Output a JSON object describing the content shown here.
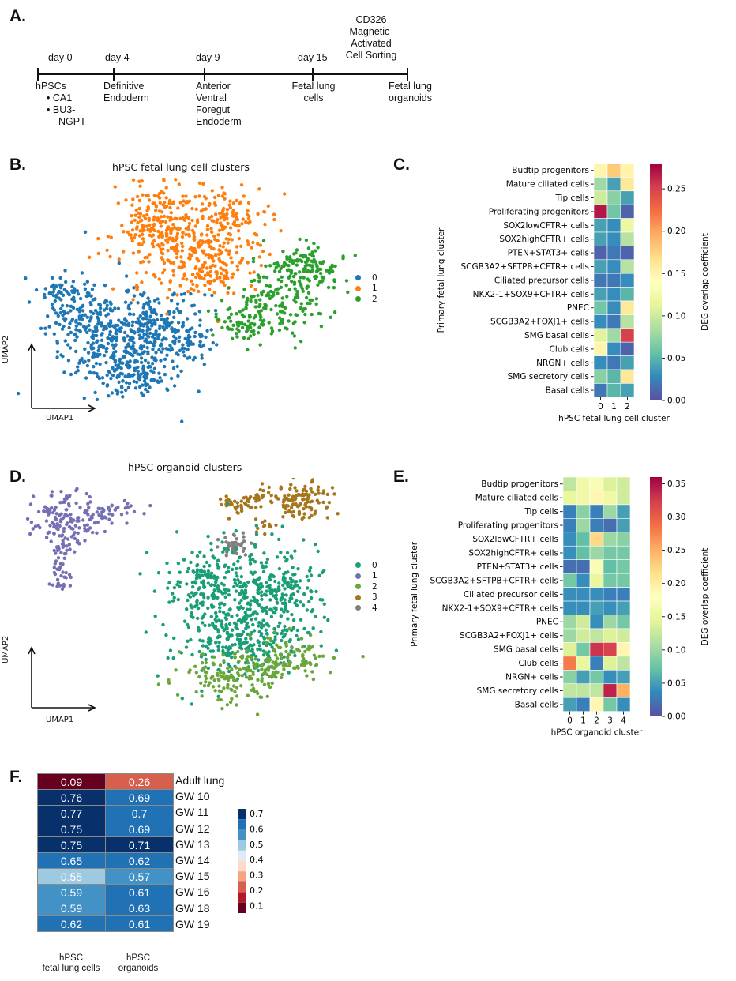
{
  "panels": {
    "a": "A.",
    "b": "B.",
    "c": "C.",
    "d": "D.",
    "e": "E.",
    "f": "F."
  },
  "timeline": {
    "days": [
      "day 0",
      "day 4",
      "day 9",
      "day 15"
    ],
    "macs": [
      "CD326",
      "Magnetic-",
      "Activated",
      "Cell Sorting"
    ],
    "stages": {
      "hpsc": "hPSCs",
      "lines": [
        "CA1",
        "BU3-",
        "NGPT"
      ],
      "de": [
        "Definitive",
        "Endoderm"
      ],
      "avfe": [
        "Anterior",
        "Ventral",
        "Foregut",
        "Endoderm"
      ],
      "flc": [
        "Fetal lung",
        "cells"
      ],
      "flo": [
        "Fetal lung",
        "organoids"
      ]
    }
  },
  "umap_b": {
    "title": "hPSC fetal lung cell clusters",
    "xlabel": "UMAP1",
    "ylabel": "UMAP2",
    "legend": [
      "0",
      "1",
      "2"
    ],
    "colors": [
      "#1f77b4",
      "#ff7f0e",
      "#2ca02c"
    ]
  },
  "umap_d": {
    "title": "hPSC organoid clusters",
    "xlabel": "UMAP1",
    "ylabel": "UMAP2",
    "legend": [
      "0",
      "1",
      "2",
      "3",
      "4"
    ],
    "colors": [
      "#1a9e77",
      "#7570b3",
      "#6aa63a",
      "#a6761d",
      "#7f7f7f"
    ]
  },
  "chart_data": [
    {
      "type": "heatmap",
      "title": "",
      "xlabel": "hPSC fetal lung cell cluster",
      "ylabel": "Primary fetal lung cluster",
      "x": [
        "0",
        "1",
        "2"
      ],
      "y": [
        "Budtip progenitors",
        "Mature ciliated cells",
        "Tip cells",
        "Proliferating progenitors",
        "SOX2lowCFTR+ cells",
        "SOX2highCFTR+ cells",
        "PTEN+STAT3+ cells",
        "SCGB3A2+SFTPB+CFTR+ cells",
        "Ciliated precursor cells",
        "NKX2-1+SOX9+CFTR+ cells",
        "PNEC",
        "SCGB3A2+FOXJ1+ cells",
        "SMG basal cells",
        "Club cells",
        "NRGN+ cells",
        "SMG secretory cells",
        "Basal cells"
      ],
      "values": [
        [
          0.15,
          0.18,
          0.15
        ],
        [
          0.08,
          0.04,
          0.16
        ],
        [
          0.1,
          0.07,
          0.04
        ],
        [
          0.27,
          0.06,
          0.01
        ],
        [
          0.04,
          0.03,
          0.12
        ],
        [
          0.04,
          0.03,
          0.09
        ],
        [
          0.01,
          0.02,
          0.01
        ],
        [
          0.04,
          0.03,
          0.09
        ],
        [
          0.02,
          0.02,
          0.03
        ],
        [
          0.04,
          0.03,
          0.05
        ],
        [
          0.06,
          0.03,
          0.16
        ],
        [
          0.03,
          0.02,
          0.09
        ],
        [
          0.11,
          0.08,
          0.25
        ],
        [
          0.15,
          0.03,
          0.01
        ],
        [
          0.03,
          0.02,
          0.04
        ],
        [
          0.07,
          0.05,
          0.16
        ],
        [
          0.02,
          0.05,
          0.04
        ]
      ],
      "colorbar": {
        "label": "DEG overlap coefficient",
        "range": [
          0,
          0.28
        ],
        "ticks": [
          "0.00",
          "0.05",
          "0.10",
          "0.15",
          "0.20",
          "0.25"
        ]
      }
    },
    {
      "type": "heatmap",
      "title": "",
      "xlabel": "hPSC organoid cluster",
      "ylabel": "Primary fetal lung cluster",
      "x": [
        "0",
        "1",
        "2",
        "3",
        "4"
      ],
      "y": [
        "Budtip progenitors",
        "Mature ciliated cells",
        "Tip cells",
        "Proliferating progenitors",
        "SOX2lowCFTR+ cells",
        "SOX2highCFTR+ cells",
        "PTEN+STAT3+ cells",
        "SCGB3A2+SFTPB+CFTR+ cells",
        "Ciliated precursor cells",
        "NKX2-1+SOX9+CFTR+ cells",
        "PNEC",
        "SCGB3A2+FOXJ1+ cells",
        "SMG basal cells",
        "Club cells",
        "NRGN+ cells",
        "SMG secretory cells",
        "Basal cells"
      ],
      "values": [
        [
          0.12,
          0.16,
          0.17,
          0.14,
          0.13
        ],
        [
          0.15,
          0.16,
          0.19,
          0.16,
          0.13
        ],
        [
          0.03,
          0.09,
          0.03,
          0.1,
          0.05
        ],
        [
          0.03,
          0.1,
          0.03,
          0.02,
          0.05
        ],
        [
          0.04,
          0.07,
          0.22,
          0.1,
          0.09
        ],
        [
          0.04,
          0.07,
          0.1,
          0.08,
          0.08
        ],
        [
          0.02,
          0.02,
          0.17,
          0.07,
          0.08
        ],
        [
          0.08,
          0.04,
          0.15,
          0.08,
          0.08
        ],
        [
          0.04,
          0.04,
          0.04,
          0.03,
          0.03
        ],
        [
          0.04,
          0.04,
          0.05,
          0.04,
          0.05
        ],
        [
          0.1,
          0.13,
          0.04,
          0.1,
          0.08
        ],
        [
          0.1,
          0.13,
          0.12,
          0.14,
          0.13
        ],
        [
          0.14,
          0.08,
          0.33,
          0.32,
          0.19
        ],
        [
          0.28,
          0.15,
          0.03,
          0.14,
          0.12
        ],
        [
          0.09,
          0.05,
          0.08,
          0.04,
          0.05
        ],
        [
          0.12,
          0.12,
          0.12,
          0.34,
          0.25
        ],
        [
          0.05,
          0.03,
          0.19,
          0.08,
          0.04
        ]
      ],
      "colorbar": {
        "label": "DEG overlap coefficient",
        "range": [
          0,
          0.36
        ],
        "ticks": [
          "0.00",
          "0.05",
          "0.10",
          "0.15",
          "0.20",
          "0.25",
          "0.30",
          "0.35"
        ]
      }
    },
    {
      "type": "table",
      "columns": [
        "hPSC fetal lung cells",
        "hPSC organoids"
      ],
      "rows": [
        "Adult lung",
        "GW 10",
        "GW 11",
        "GW 12",
        "GW 13",
        "GW 14",
        "GW 15",
        "GW 16",
        "GW 18",
        "GW 19"
      ],
      "values": [
        [
          0.09,
          0.26
        ],
        [
          0.76,
          0.69
        ],
        [
          0.77,
          0.7
        ],
        [
          0.75,
          0.69
        ],
        [
          0.75,
          0.71
        ],
        [
          0.65,
          0.62
        ],
        [
          0.55,
          0.57
        ],
        [
          0.59,
          0.61
        ],
        [
          0.59,
          0.63
        ],
        [
          0.62,
          0.61
        ]
      ],
      "colorbar": {
        "ticks": [
          "0.7",
          "0.6",
          "0.5",
          "0.4",
          "0.3",
          "0.2",
          "0.1"
        ]
      }
    }
  ],
  "table_f": {
    "cols": [
      [
        "hPSC",
        "fetal lung cells"
      ],
      [
        "hPSC",
        "organoids"
      ]
    ],
    "rows": [
      {
        "label": "Adult lung",
        "a": "0.09",
        "b": "0.26"
      },
      {
        "label": "GW 10",
        "a": "0.76",
        "b": "0.69"
      },
      {
        "label": "GW 11",
        "a": "0.77",
        "b": "0.7"
      },
      {
        "label": "GW 12",
        "a": "0.75",
        "b": "0.69"
      },
      {
        "label": "GW 13",
        "a": "0.75",
        "b": "0.71"
      },
      {
        "label": "GW 14",
        "a": "0.65",
        "b": "0.62"
      },
      {
        "label": "GW 15",
        "a": "0.55",
        "b": "0.57"
      },
      {
        "label": "GW 16",
        "a": "0.59",
        "b": "0.61"
      },
      {
        "label": "GW 18",
        "a": "0.59",
        "b": "0.63"
      },
      {
        "label": "GW 19",
        "a": "0.62",
        "b": "0.61"
      }
    ],
    "colorbar": [
      "0.7",
      "0.6",
      "0.5",
      "0.4",
      "0.3",
      "0.2",
      "0.1"
    ]
  }
}
